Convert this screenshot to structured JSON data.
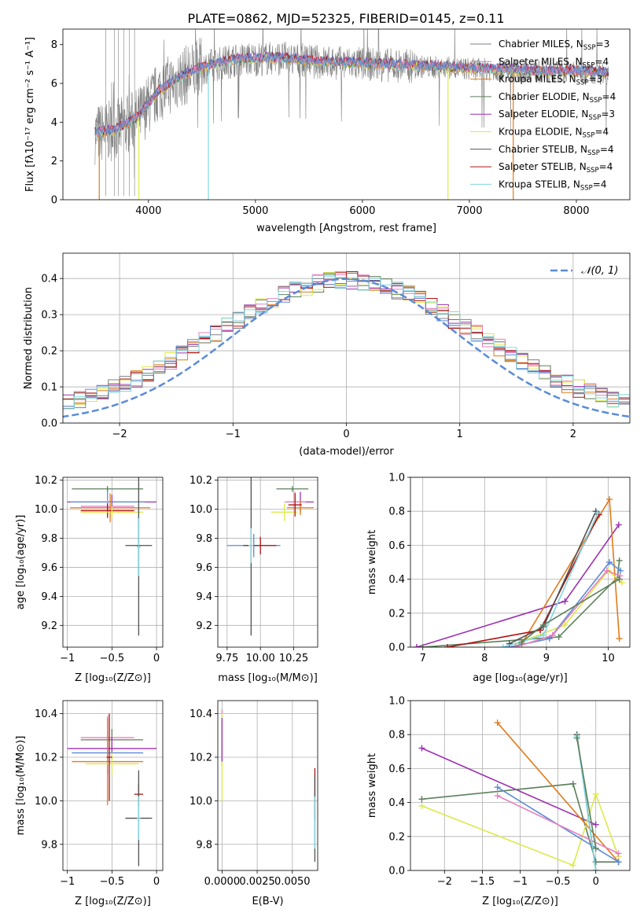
{
  "figure_title": "PLATE=0862, MJD=52325, FIBERID=0145, z=0.11",
  "series_colors": {
    "Chabrier MILES": "#808080",
    "Salpeter MILES": "#a0a0a0",
    "Kroupa MILES": "#e07b1a",
    "Chabrier ELODIE": "#5b7f5b",
    "Salpeter ELODIE": "#9b30b0",
    "Kroupa ELODIE": "#dde94a",
    "Chabrier STELIB": "#505050",
    "Salpeter STELIB": "#b01010",
    "Kroupa STELIB": "#7fd8e0",
    "pink": "#e67fbf",
    "blue": "#5b8bd8"
  },
  "chart_data": [
    {
      "id": "spectrum",
      "type": "line",
      "xlabel": "wavelength [Angstrom, rest frame]",
      "ylabel": "Flux [fλ10⁻¹⁷ erg cm⁻² s⁻¹ A⁻¹]",
      "xlim": [
        3200,
        8500
      ],
      "ylim": [
        0,
        8.8
      ],
      "xticks": [
        4000,
        5000,
        6000,
        7000,
        8000
      ],
      "yticks": [
        0,
        2,
        4,
        6,
        8
      ],
      "legend_position": "top-right",
      "legend": [
        {
          "label": "Chabrier MILES, N",
          "sub": "SSP",
          "tail": "=3",
          "color": "#808080"
        },
        {
          "label": "Salpeter MILES, N",
          "sub": "SSP",
          "tail": "=4",
          "color": "#a0a0a0"
        },
        {
          "label": "Kroupa MILES, N",
          "sub": "SSP",
          "tail": "=3",
          "color": "#e07b1a"
        },
        {
          "label": "Chabrier ELODIE, N",
          "sub": "SSP",
          "tail": "=4",
          "color": "#5b7f5b"
        },
        {
          "label": "Salpeter ELODIE, N",
          "sub": "SSP",
          "tail": "=3",
          "color": "#9b30b0"
        },
        {
          "label": "Kroupa ELODIE, N",
          "sub": "SSP",
          "tail": "=4",
          "color": "#dde94a"
        },
        {
          "label": "Chabrier STELIB, N",
          "sub": "SSP",
          "tail": "=4",
          "color": "#505050"
        },
        {
          "label": "Salpeter STELIB, N",
          "sub": "SSP",
          "tail": "=4",
          "color": "#b01010"
        },
        {
          "label": "Kroupa STELIB, N",
          "sub": "SSP",
          "tail": "=4",
          "color": "#7fd8e0"
        }
      ],
      "continuum": {
        "x": [
          3500,
          3700,
          3900,
          4100,
          4300,
          4500,
          4800,
          5200,
          5600,
          6000,
          6400,
          6800,
          7200,
          7600,
          8000,
          8300
        ],
        "y": [
          3.4,
          3.6,
          4.2,
          5.6,
          6.3,
          6.8,
          7.2,
          7.3,
          7.1,
          7.0,
          6.9,
          6.8,
          6.7,
          6.6,
          6.6,
          6.5
        ]
      }
    },
    {
      "id": "residuals",
      "type": "histogram",
      "xlabel": "(data-model)/error",
      "ylabel": "Normed distribution",
      "xlim": [
        -2.5,
        2.5
      ],
      "ylim": [
        0,
        0.47
      ],
      "xticks": [
        -2,
        -1,
        0,
        1,
        2
      ],
      "yticks": [
        0.0,
        0.1,
        0.2,
        0.3,
        0.4
      ],
      "legend": "𝒩(0, 1)",
      "legend_position": "top-right",
      "gaussian": {
        "mean": 0,
        "sigma": 1,
        "color": "#5b8bd8"
      },
      "bin_width": 0.1
    },
    {
      "id": "age-vs-Z",
      "type": "errorbar",
      "xlabel": "Z [log₁₀(Z/Z⊙)]",
      "ylabel": "age  [log₁₀(age/yr)]",
      "xlim": [
        -1.05,
        0.07
      ],
      "ylim": [
        9.05,
        10.22
      ],
      "xticks": [
        -1.0,
        -0.5,
        0.0
      ],
      "yticks": [
        9.2,
        9.4,
        9.6,
        9.8,
        10.0,
        10.2
      ],
      "points": [
        {
          "x": -0.55,
          "xerr": 0.4,
          "y": 10.14,
          "yerr": 0.02,
          "color": "#5b7f5b"
        },
        {
          "x": -0.5,
          "xerr": 0.5,
          "y": 10.05,
          "yerr": 0.05,
          "color": "#9b30b0"
        },
        {
          "x": -0.55,
          "xerr": 0.42,
          "y": 10.05,
          "yerr": 0.07,
          "color": "#5b8bd8"
        },
        {
          "x": -0.55,
          "xerr": 0.3,
          "y": 10.02,
          "yerr": 0.05,
          "color": "#e67fbf"
        },
        {
          "x": -0.52,
          "xerr": 0.45,
          "y": 10.01,
          "yerr": 0.1,
          "color": "#e07b1a"
        },
        {
          "x": -0.55,
          "xerr": 0.3,
          "y": 9.99,
          "yerr": 0.05,
          "color": "#b01010"
        },
        {
          "x": -0.5,
          "xerr": 0.35,
          "y": 9.98,
          "yerr": 0.04,
          "color": "#dde94a"
        },
        {
          "x": -0.2,
          "xerr": 0.02,
          "y": 9.75,
          "yerr": 0.2,
          "color": "#b01010"
        },
        {
          "x": -0.2,
          "xerr": 0.15,
          "y": 9.75,
          "yerr": 0.62,
          "color": "#505050"
        },
        {
          "x": -0.2,
          "xerr": 0.02,
          "y": 9.74,
          "yerr": 0.2,
          "color": "#7fd8e0"
        }
      ]
    },
    {
      "id": "age-vs-mass",
      "type": "errorbar",
      "xlabel": "mass [log₁₀(M/M⊙)]",
      "ylabel": "",
      "xlim": [
        9.68,
        10.43
      ],
      "ylim": [
        9.05,
        10.22
      ],
      "xticks": [
        9.75,
        10.0,
        10.25
      ],
      "xticklabels": [
        "9.75",
        "10.00",
        "10.25"
      ],
      "yticks": [
        9.2,
        9.4,
        9.6,
        9.8,
        10.0,
        10.2
      ],
      "points": [
        {
          "x": 10.24,
          "xerr": 0.12,
          "y": 10.14,
          "yerr": 0.02,
          "color": "#5b7f5b"
        },
        {
          "x": 10.3,
          "xerr": 0.1,
          "y": 10.05,
          "yerr": 0.07,
          "color": "#9b30b0"
        },
        {
          "x": 10.26,
          "xerr": 0.08,
          "y": 10.05,
          "yerr": 0.07,
          "color": "#e67fbf"
        },
        {
          "x": 10.3,
          "xerr": 0.1,
          "y": 10.01,
          "yerr": 0.05,
          "color": "#e07b1a"
        },
        {
          "x": 10.18,
          "xerr": 0.1,
          "y": 9.98,
          "yerr": 0.06,
          "color": "#dde94a"
        },
        {
          "x": 10.26,
          "xerr": 0.05,
          "y": 10.03,
          "yerr": 0.08,
          "color": "#b01010"
        },
        {
          "x": 9.95,
          "xerr": 0.2,
          "y": 9.75,
          "yerr": 0.08,
          "color": "#5b8bd8"
        },
        {
          "x": 10.0,
          "xerr": 0.12,
          "y": 9.75,
          "yerr": 0.06,
          "color": "#b01010"
        },
        {
          "x": 9.93,
          "xerr": 0.06,
          "y": 9.75,
          "yerr": 0.62,
          "color": "#505050"
        },
        {
          "x": 9.93,
          "xerr": 0.02,
          "y": 9.75,
          "yerr": 0.12,
          "color": "#7fd8e0"
        }
      ]
    },
    {
      "id": "weight-vs-age",
      "type": "line",
      "xlabel": "age  [log₁₀(age/yr)]",
      "ylabel": "mass weight",
      "xlim": [
        6.8,
        10.35
      ],
      "ylim": [
        0,
        1.0
      ],
      "xticks": [
        7,
        8,
        9,
        10
      ],
      "yticks": [
        0.0,
        0.2,
        0.4,
        0.6,
        0.8,
        1.0
      ],
      "series": [
        {
          "color": "#9b30b0",
          "x": [
            6.9,
            9.3,
            10.17
          ],
          "y": [
            0.0,
            0.27,
            0.72
          ]
        },
        {
          "color": "#5b7f5b",
          "x": [
            7.0,
            9.2,
            10.15,
            10.18
          ],
          "y": [
            0.0,
            0.06,
            0.41,
            0.51
          ]
        },
        {
          "color": "#e07b1a",
          "x": [
            8.6,
            10.02,
            10.18
          ],
          "y": [
            0.02,
            0.87,
            0.05
          ]
        },
        {
          "color": "#dde94a",
          "x": [
            8.5,
            9.3,
            10.0,
            10.22
          ],
          "y": [
            0.02,
            0.13,
            0.45,
            0.38
          ]
        },
        {
          "color": "#b01010",
          "x": [
            7.4,
            8.9,
            9.85
          ],
          "y": [
            0.0,
            0.1,
            0.78
          ]
        },
        {
          "color": "#505050",
          "x": [
            8.4,
            8.95,
            9.8
          ],
          "y": [
            0.02,
            0.12,
            0.8
          ]
        },
        {
          "color": "#7fd8e0",
          "x": [
            8.3,
            8.95,
            9.83
          ],
          "y": [
            0.0,
            0.07,
            0.79
          ]
        },
        {
          "color": "#5b8bd8",
          "x": [
            8.4,
            9.05,
            10.02,
            10.2
          ],
          "y": [
            0.0,
            0.05,
            0.5,
            0.45
          ]
        },
        {
          "color": "#e67fbf",
          "x": [
            8.5,
            9.1,
            9.98,
            10.19
          ],
          "y": [
            0.0,
            0.07,
            0.45,
            0.42
          ]
        },
        {
          "color": "#5b7f5b",
          "x": [
            8.6,
            8.95,
            10.18
          ],
          "y": [
            0.03,
            0.13,
            0.4
          ]
        }
      ]
    },
    {
      "id": "mass-vs-Z",
      "type": "errorbar",
      "xlabel": "Z [log₁₀(Z/Z⊙)]",
      "ylabel": "mass [log₁₀(M/M⊙)]",
      "xlim": [
        -1.05,
        0.07
      ],
      "ylim": [
        9.68,
        10.46
      ],
      "xticks": [
        -1.0,
        -0.5,
        0.0
      ],
      "yticks": [
        9.8,
        10.0,
        10.2,
        10.4
      ],
      "points": [
        {
          "x": -0.55,
          "xerr": 0.3,
          "y": 10.29,
          "yerr": 0.1,
          "color": "#e67fbf"
        },
        {
          "x": -0.5,
          "xerr": 0.35,
          "y": 10.28,
          "yerr": 0.05,
          "color": "#5b7f5b"
        },
        {
          "x": -0.5,
          "xerr": 0.5,
          "y": 10.24,
          "yerr": 0.05,
          "color": "#9b30b0"
        },
        {
          "x": -0.55,
          "xerr": 0.4,
          "y": 10.22,
          "yerr": 0.1,
          "color": "#5b8bd8"
        },
        {
          "x": -0.55,
          "xerr": 0.4,
          "y": 10.18,
          "yerr": 0.2,
          "color": "#e07b1a"
        },
        {
          "x": -0.5,
          "xerr": 0.3,
          "y": 10.17,
          "yerr": 0.05,
          "color": "#dde94a"
        },
        {
          "x": -0.53,
          "xerr": 0.03,
          "y": 10.2,
          "yerr": 0.2,
          "color": "#b01010"
        },
        {
          "x": -0.2,
          "xerr": 0.05,
          "y": 10.03,
          "yerr": 0.05,
          "color": "#b01010"
        },
        {
          "x": -0.2,
          "xerr": 0.15,
          "y": 9.92,
          "yerr": 0.22,
          "color": "#505050"
        },
        {
          "x": -0.2,
          "xerr": 0.02,
          "y": 9.92,
          "yerr": 0.1,
          "color": "#7fd8e0"
        }
      ]
    },
    {
      "id": "mass-vs-EBV",
      "type": "errorbar",
      "xlabel": "E(B-V)",
      "ylabel": "",
      "xlim": [
        -0.0003,
        0.0068
      ],
      "ylim": [
        9.68,
        10.46
      ],
      "xticks": [
        0.0,
        0.0025,
        0.005
      ],
      "xticklabels": [
        "0.0000",
        "0.0025",
        "0.0050"
      ],
      "yticks": [
        9.8,
        10.0,
        10.2,
        10.4
      ],
      "points": [
        {
          "x": 0.0,
          "xerr": 0.0,
          "y": 10.29,
          "yerr": 0.13,
          "color": "#e67fbf"
        },
        {
          "x": 0.0,
          "xerr": 0.0,
          "y": 10.2,
          "yerr": 0.2,
          "color": "#dde94a"
        },
        {
          "x": 0.0,
          "xerr": 0.0,
          "y": 10.28,
          "yerr": 0.1,
          "color": "#9b30b0"
        },
        {
          "x": 0.0066,
          "xerr": 0.0,
          "y": 10.03,
          "yerr": 0.12,
          "color": "#b01010"
        },
        {
          "x": 0.0066,
          "xerr": 0.0,
          "y": 9.92,
          "yerr": 0.2,
          "color": "#505050"
        },
        {
          "x": 0.0066,
          "xerr": 0.0,
          "y": 9.9,
          "yerr": 0.12,
          "color": "#7fd8e0"
        }
      ]
    },
    {
      "id": "weight-vs-Z",
      "type": "line",
      "xlabel": "Z [log₁₀(Z/Z⊙)]",
      "ylabel": "mass weight",
      "xlim": [
        -2.45,
        0.45
      ],
      "ylim": [
        0,
        1.0
      ],
      "xticks": [
        -2.0,
        -1.5,
        -1.0,
        -0.5,
        0.0
      ],
      "yticks": [
        0.0,
        0.2,
        0.4,
        0.6,
        0.8,
        1.0
      ],
      "series": [
        {
          "color": "#9b30b0",
          "x": [
            -2.3,
            0.0
          ],
          "y": [
            0.72,
            0.27
          ]
        },
        {
          "color": "#5b7f5b",
          "x": [
            -2.3,
            -0.3,
            0.0,
            0.3
          ],
          "y": [
            0.42,
            0.51,
            0.05,
            0.05
          ]
        },
        {
          "color": "#dde94a",
          "x": [
            -2.3,
            -0.3,
            0.0,
            0.3
          ],
          "y": [
            0.38,
            0.03,
            0.45,
            0.08
          ]
        },
        {
          "color": "#e07b1a",
          "x": [
            -1.3,
            0.3
          ],
          "y": [
            0.87,
            0.05
          ]
        },
        {
          "color": "#5b8bd8",
          "x": [
            -1.3,
            0.3
          ],
          "y": [
            0.49,
            0.05
          ]
        },
        {
          "color": "#e67fbf",
          "x": [
            -1.3,
            0.3
          ],
          "y": [
            0.44,
            0.1
          ]
        },
        {
          "color": "#505050",
          "x": [
            -0.25,
            0.0
          ],
          "y": [
            0.8,
            0.0
          ]
        },
        {
          "color": "#7fd8e0",
          "x": [
            -0.25,
            0.0
          ],
          "y": [
            0.79,
            0.0
          ]
        },
        {
          "color": "#5b7f5b",
          "x": [
            -0.25,
            0.0
          ],
          "y": [
            0.78,
            0.13
          ]
        }
      ]
    }
  ]
}
